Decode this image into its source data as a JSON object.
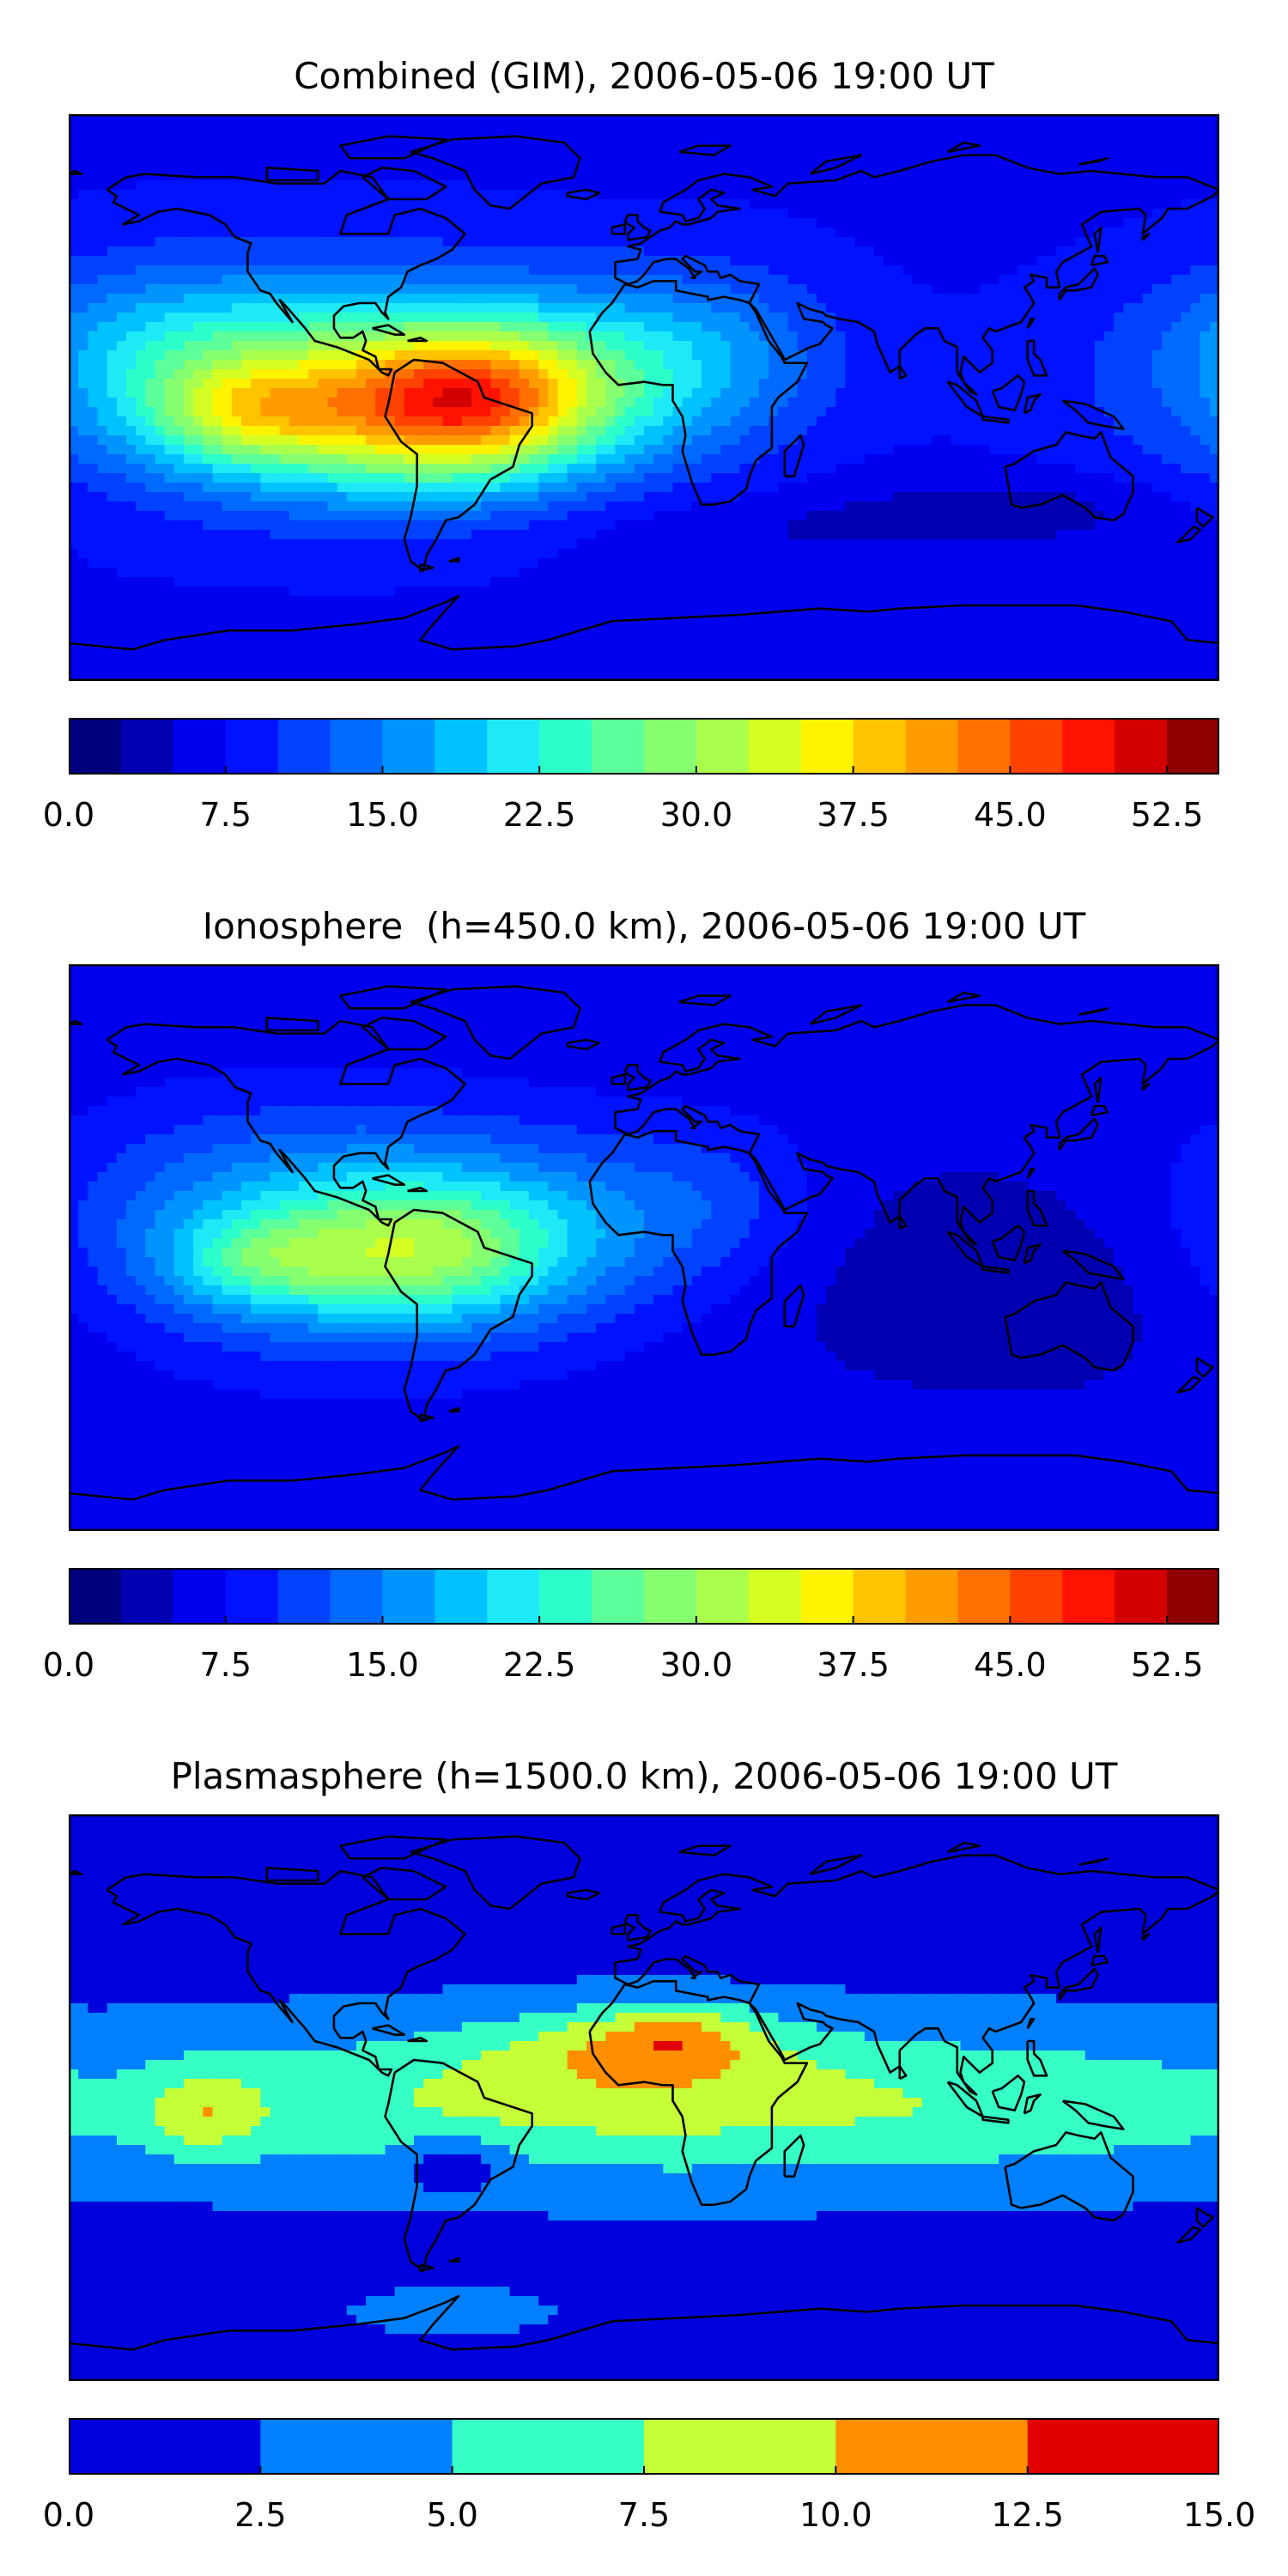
{
  "panels": [
    {
      "title": "Combined (GIM), 2006-05-06 19:00 UT",
      "vmin": 0,
      "vmax": 55,
      "levels": 22,
      "colors": [
        "#00007f",
        "#0000b2",
        "#0000ee",
        "#0012ff",
        "#0042ff",
        "#006aff",
        "#0094ff",
        "#00c2ff",
        "#1de9f7",
        "#2dffca",
        "#5dff9a",
        "#86ff71",
        "#aaff4d",
        "#d5ff22",
        "#fff400",
        "#ffc400",
        "#ff9c00",
        "#ff7000",
        "#ff4200",
        "#ff1200",
        "#d20000",
        "#8f0000"
      ],
      "ticks": [
        "0.0",
        "7.5",
        "15.0",
        "22.5",
        "30.0",
        "37.5",
        "45.0",
        "52.5"
      ],
      "tick_values": [
        0,
        7.5,
        15,
        22.5,
        30,
        37.5,
        45,
        52.5
      ],
      "field": {
        "background": 7,
        "blobs": [
          {
            "lon": -110,
            "lat": 5,
            "slon": 60,
            "slat": 25,
            "amp": 15
          },
          {
            "lon": -70,
            "lat": -5,
            "slon": 35,
            "slat": 18,
            "amp": 17
          },
          {
            "lon": -50,
            "lat": 0,
            "slon": 25,
            "slat": 15,
            "amp": 12
          },
          {
            "lon": -125,
            "lat": -5,
            "slon": 22,
            "slat": 12,
            "amp": 12
          },
          {
            "lon": -25,
            "lat": 5,
            "slon": 40,
            "slat": 20,
            "amp": 9
          },
          {
            "lon": 20,
            "lat": 15,
            "slon": 30,
            "slat": 20,
            "amp": 6
          },
          {
            "lon": -150,
            "lat": 20,
            "slon": 30,
            "slat": 15,
            "amp": 4
          },
          {
            "lon": 120,
            "lat": -35,
            "slon": 40,
            "slat": 8,
            "amp": -3
          },
          {
            "lon": 40,
            "lat": -42,
            "slon": 60,
            "slat": 8,
            "amp": -2
          }
        ]
      }
    },
    {
      "title": "Ionosphere  (h=450.0 km), 2006-05-06 19:00 UT",
      "vmin": 0,
      "vmax": 55,
      "levels": 22,
      "colors": [
        "#00007f",
        "#0000b2",
        "#0000ee",
        "#0012ff",
        "#0042ff",
        "#006aff",
        "#0094ff",
        "#00c2ff",
        "#1de9f7",
        "#2dffca",
        "#5dff9a",
        "#86ff71",
        "#aaff4d",
        "#d5ff22",
        "#fff400",
        "#ffc400",
        "#ff9c00",
        "#ff7000",
        "#ff4200",
        "#ff1200",
        "#d20000",
        "#8f0000"
      ],
      "ticks": [
        "0.0",
        "7.5",
        "15.0",
        "22.5",
        "30.0",
        "37.5",
        "45.0",
        "52.5"
      ],
      "tick_values": [
        0,
        7.5,
        15,
        22.5,
        30,
        37.5,
        45,
        52.5
      ],
      "field": {
        "background": 6,
        "blobs": [
          {
            "lon": -100,
            "lat": 5,
            "slon": 55,
            "slat": 25,
            "amp": 14
          },
          {
            "lon": -70,
            "lat": -2,
            "slon": 30,
            "slat": 15,
            "amp": 12
          },
          {
            "lon": -120,
            "lat": -5,
            "slon": 20,
            "slat": 10,
            "amp": 8
          },
          {
            "lon": -30,
            "lat": 5,
            "slon": 35,
            "slat": 20,
            "amp": 5
          },
          {
            "lon": 120,
            "lat": -10,
            "slon": 60,
            "slat": 25,
            "amp": -3
          },
          {
            "lon": 20,
            "lat": 15,
            "slon": 25,
            "slat": 18,
            "amp": 4
          }
        ]
      }
    },
    {
      "title": "Plasmasphere (h=1500.0 km), 2006-05-06 19:00 UT",
      "vmin": 0,
      "vmax": 15,
      "levels": 6,
      "colors": [
        "#0000dd",
        "#0080ff",
        "#36ffc6",
        "#c4ff38",
        "#ff8f00",
        "#e10000"
      ],
      "ticks": [
        "0.0",
        "2.5",
        "5.0",
        "7.5",
        "10.0",
        "12.5",
        "15.0"
      ],
      "tick_values": [
        0,
        2.5,
        5,
        7.5,
        10,
        12.5,
        15
      ],
      "field": {
        "background": 1.6,
        "blobs": [
          {
            "lon": 10,
            "lat": -2,
            "slon": 170,
            "slat": 18,
            "amp": 6.5
          },
          {
            "lon": -5,
            "lat": 15,
            "slon": 35,
            "slat": 10,
            "amp": 4
          },
          {
            "lon": 10,
            "lat": 20,
            "slon": 18,
            "slat": 7,
            "amp": 4
          },
          {
            "lon": -138,
            "lat": -5,
            "slon": 12,
            "slat": 9,
            "amp": 4
          },
          {
            "lon": -60,
            "lat": -20,
            "slon": 12,
            "slat": 6,
            "amp": -4
          },
          {
            "lon": -60,
            "lat": -68,
            "slon": 25,
            "slat": 6,
            "amp": 2
          }
        ]
      }
    }
  ]
}
